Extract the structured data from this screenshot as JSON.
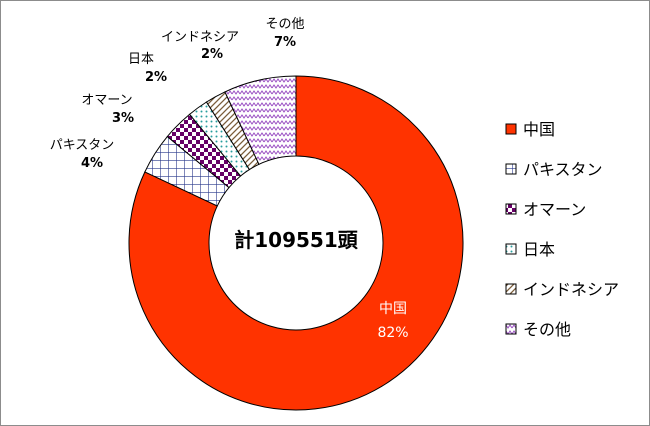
{
  "chart_data": {
    "type": "pie",
    "variant": "donut",
    "total_label": "計109551頭",
    "categories": [
      "中国",
      "パキスタン",
      "オマーン",
      "日本",
      "インドネシア",
      "その他"
    ],
    "values": [
      82,
      4,
      3,
      2,
      2,
      7
    ],
    "value_labels": [
      "82%",
      "4%",
      "3%",
      "2%",
      "2%",
      "7%"
    ],
    "colors": [
      "#ff3300",
      "#2b3a8c",
      "#660066",
      "#2a9d9d",
      "#7a5c3a",
      "#9a4fc2"
    ],
    "patterns": [
      "solid",
      "grid",
      "checker",
      "dots",
      "diagonal",
      "zigzag"
    ],
    "legend": [
      "中国",
      "パキスタン",
      "オマーン",
      "日本",
      "インドネシア",
      "その他"
    ],
    "legend_position": "right"
  }
}
